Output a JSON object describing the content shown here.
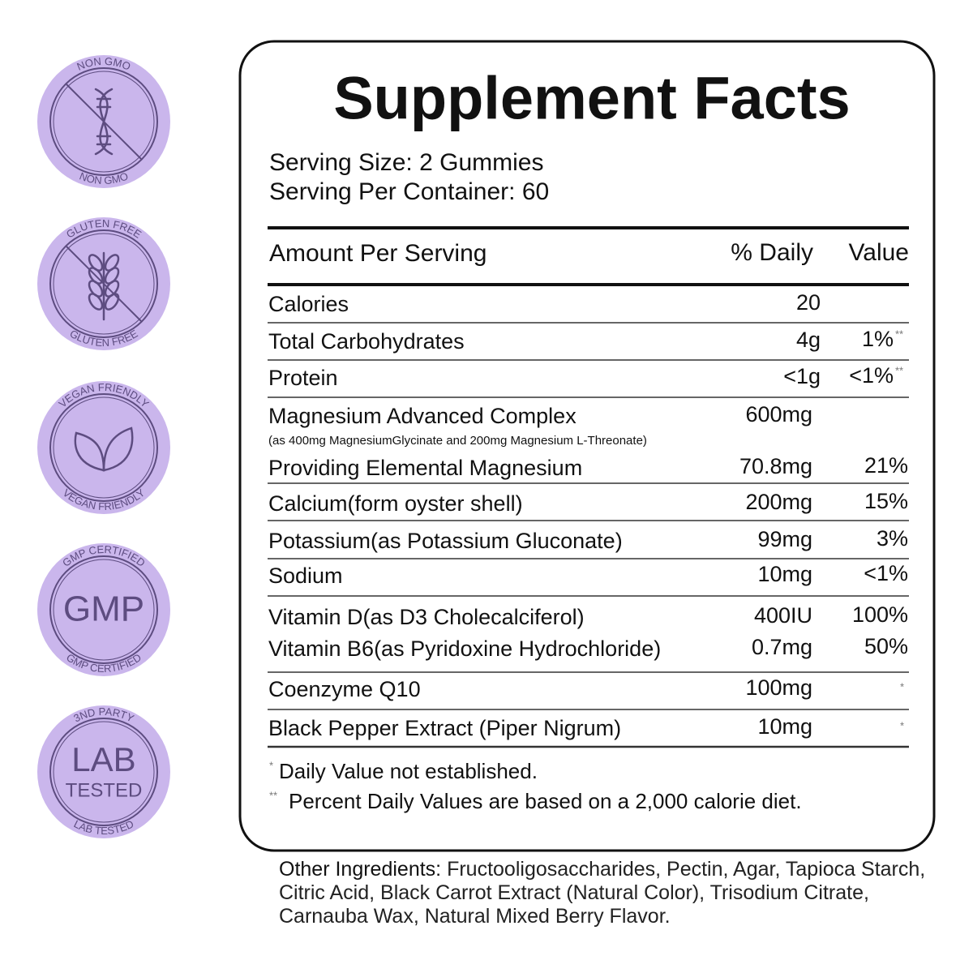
{
  "badges": [
    {
      "top": "NON GMO",
      "bottom": "NON GMO",
      "icon": "dna"
    },
    {
      "top": "GLUTEN FREE",
      "bottom": "GLUTEN FREE",
      "icon": "wheat"
    },
    {
      "top": "VEGAN FRIENDLY",
      "bottom": "VEGAN FRIENDLY",
      "icon": "leaf"
    },
    {
      "top": "GMP CERTIFIED",
      "bottom": "GMP CERTIFIED",
      "center": [
        "GMP"
      ]
    },
    {
      "top": "3ND PARTY",
      "bottom": "LAB TESTED",
      "center": [
        "LAB",
        "TESTED"
      ]
    }
  ],
  "panel": {
    "title": "Supplement Facts",
    "serving_size": "Serving Size: 2 Gummies",
    "servings_per_container": "Serving Per Container: 60",
    "header": {
      "amount": "Amount Per Serving",
      "daily": "% Daily",
      "value": "Value"
    },
    "rows": [
      {
        "name": "Calories",
        "amount": "20"
      },
      {
        "name": "Total Carbohydrates",
        "amount": "4g",
        "dv": "1%",
        "note": "**"
      },
      {
        "name": "Protein",
        "amount": "<1g",
        "dv": "<1%",
        "note": "**"
      },
      {
        "name": "Magnesium Advanced Complex",
        "amount": "600mg",
        "detail": "(as 400mg MagnesiumGlycinate and 200mg Magnesium L-Threonate)"
      },
      {
        "name": "Providing Elemental Magnesium",
        "amount": "70.8mg",
        "dv": "21%"
      },
      {
        "name": "Calcium(form oyster shell)",
        "amount": "200mg",
        "dv": "15%"
      },
      {
        "name": "Potassium(as Potassium Gluconate)",
        "amount": "99mg",
        "dv": "3%"
      },
      {
        "name": "Sodium",
        "amount": "10mg",
        "dv": "<1%"
      },
      {
        "name": "Vitamin D(as D3 Cholecalciferol)",
        "amount": "400IU",
        "dv": "100%"
      },
      {
        "name": "Vitamin B6(as Pyridoxine Hydrochloride)",
        "amount": "0.7mg",
        "dv": "50%"
      },
      {
        "name": "Coenzyme Q10",
        "amount": "100mg",
        "note": "*"
      },
      {
        "name": "Black Pepper Extract (Piper Nigrum)",
        "amount": "10mg",
        "note": "*"
      }
    ],
    "footnotes": [
      {
        "mark": "*",
        "text": "Daily Value not established."
      },
      {
        "mark": "**",
        "text": "Percent Daily Values are based on a 2,000 calorie diet."
      }
    ]
  },
  "other_ingredients": {
    "label": "Other Ingredients:",
    "text": "Fructooligosaccharides, Pectin, Agar, Tapioca Starch, Citric Acid, Black Carrot Extract (Natural Color), Trisodium Citrate, Carnauba Wax, Natural Mixed Berry Flavor."
  }
}
